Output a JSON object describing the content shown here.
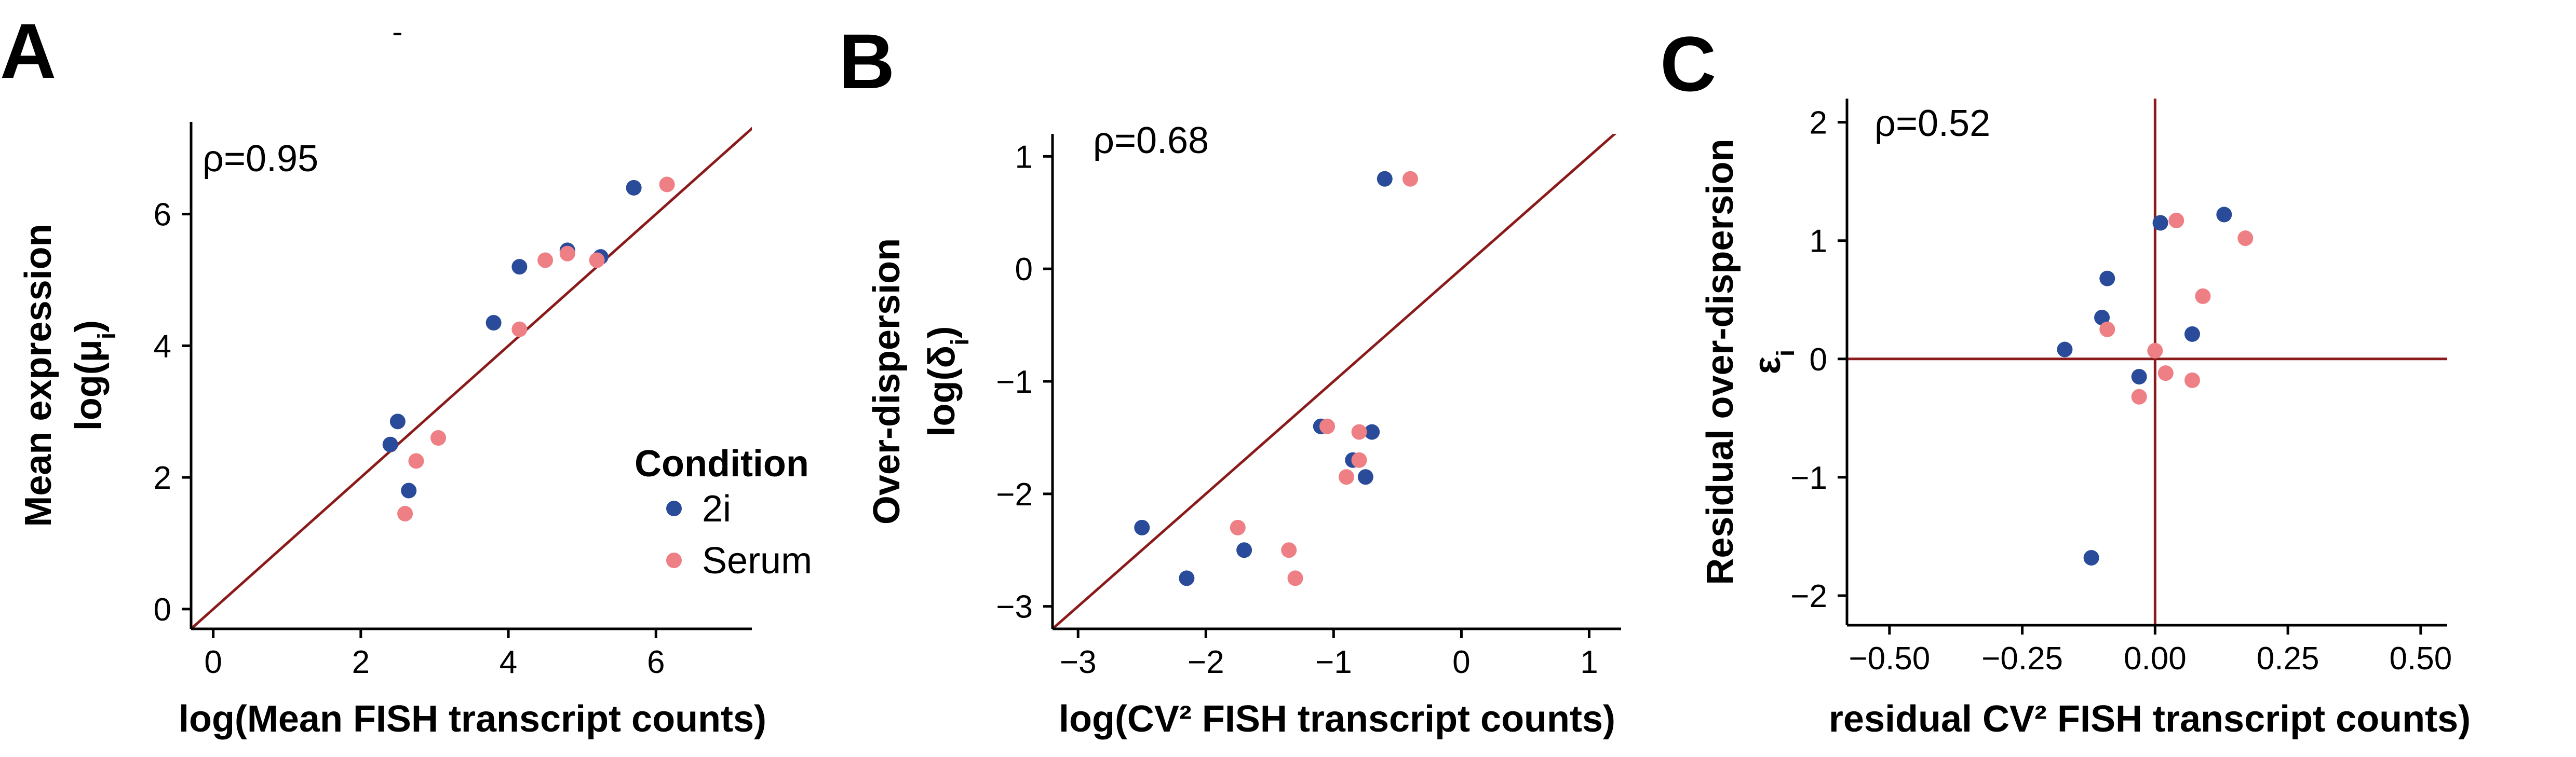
{
  "colors": {
    "2i": "#2a4b9a",
    "Serum": "#ee8085",
    "reference_line": "#8b1a1a",
    "axis": "#000000"
  },
  "legend": {
    "title": "Condition",
    "entries": [
      {
        "label": "2i",
        "color": "#2a4b9a"
      },
      {
        "label": "Serum",
        "color": "#ee8085"
      }
    ],
    "placement": "inside-bottom-right of panel A"
  },
  "stray_mark": "-",
  "chart_data": [
    {
      "panel": "A",
      "type": "scatter",
      "annotation": "ρ=0.95",
      "xlabel": "log(Mean FISH transcript counts)",
      "ylabel_lines": [
        "Mean expression",
        "log(μ",
        "i",
        ")"
      ],
      "xlim": [
        -0.3,
        7.3
      ],
      "ylim": [
        -0.3,
        7.4
      ],
      "xticks": [
        0,
        2,
        4,
        6
      ],
      "yticks": [
        0,
        2,
        4,
        6
      ],
      "reference_line": {
        "kind": "identity",
        "slope": 1,
        "intercept": 0
      },
      "series": [
        {
          "name": "2i",
          "points": [
            [
              2.4,
              2.5
            ],
            [
              2.5,
              2.85
            ],
            [
              2.65,
              1.8
            ],
            [
              3.8,
              4.35
            ],
            [
              4.15,
              5.2
            ],
            [
              4.8,
              5.45
            ],
            [
              5.25,
              5.35
            ],
            [
              5.7,
              6.4
            ]
          ]
        },
        {
          "name": "Serum",
          "points": [
            [
              2.6,
              1.45
            ],
            [
              2.75,
              2.25
            ],
            [
              3.05,
              2.6
            ],
            [
              4.15,
              4.25
            ],
            [
              4.5,
              5.3
            ],
            [
              4.8,
              5.4
            ],
            [
              5.2,
              5.3
            ],
            [
              6.15,
              6.45
            ]
          ]
        }
      ]
    },
    {
      "panel": "B",
      "type": "scatter",
      "annotation": "ρ=0.68",
      "xlabel": "log(CV² FISH transcript counts)",
      "ylabel_lines": [
        "Over-dispersion",
        "log(δ",
        "i",
        ")"
      ],
      "xlim": [
        -3.2,
        1.25
      ],
      "ylim": [
        -3.2,
        1.2
      ],
      "xticks": [
        -3,
        -2,
        -1,
        0,
        1
      ],
      "ytick_labels": [
        "1",
        "0",
        "−1",
        "−2",
        "−3"
      ],
      "yticks": [
        1,
        0,
        -1,
        -2,
        -3
      ],
      "xtick_labels": [
        "−3",
        "−2",
        "−1",
        "0",
        "1"
      ],
      "reference_line": {
        "kind": "identity",
        "slope": 1,
        "intercept": 0
      },
      "series": [
        {
          "name": "2i",
          "points": [
            [
              -2.5,
              -2.3
            ],
            [
              -2.15,
              -2.75
            ],
            [
              -1.7,
              -2.5
            ],
            [
              -1.1,
              -1.4
            ],
            [
              -0.7,
              -1.45
            ],
            [
              -0.85,
              -1.7
            ],
            [
              -0.75,
              -1.85
            ],
            [
              -0.6,
              0.8
            ]
          ]
        },
        {
          "name": "Serum",
          "points": [
            [
              -1.75,
              -2.3
            ],
            [
              -1.35,
              -2.5
            ],
            [
              -1.3,
              -2.75
            ],
            [
              -1.05,
              -1.4
            ],
            [
              -0.8,
              -1.45
            ],
            [
              -0.8,
              -1.7
            ],
            [
              -0.9,
              -1.85
            ],
            [
              -0.4,
              0.8
            ]
          ]
        }
      ]
    },
    {
      "panel": "C",
      "type": "scatter",
      "annotation": "ρ=0.52",
      "xlabel": "residual CV² FISH transcript counts)",
      "ylabel_lines": [
        "Residual over-dispersion",
        "ε",
        "i"
      ],
      "xlim": [
        -0.58,
        0.55
      ],
      "ylim": [
        -2.25,
        2.2
      ],
      "xticks": [
        -0.5,
        -0.25,
        0,
        0.25,
        0.5
      ],
      "xtick_labels": [
        "−0.50",
        "−0.25",
        "0.00",
        "0.25",
        "0.50"
      ],
      "yticks": [
        2,
        1,
        0,
        -1,
        -2
      ],
      "ytick_labels": [
        "2",
        "1",
        "0",
        "−1",
        "−2"
      ],
      "reference_line": {
        "kind": "crosshair",
        "x": 0,
        "y": 0
      },
      "series": [
        {
          "name": "2i",
          "points": [
            [
              -0.17,
              0.08
            ],
            [
              -0.1,
              0.35
            ],
            [
              -0.09,
              0.68
            ],
            [
              -0.03,
              -0.15
            ],
            [
              -0.12,
              -1.68
            ],
            [
              0.01,
              1.15
            ],
            [
              0.13,
              1.22
            ],
            [
              0.07,
              0.21
            ]
          ]
        },
        {
          "name": "Serum",
          "points": [
            [
              -0.09,
              0.25
            ],
            [
              -0.03,
              -0.32
            ],
            [
              0.0,
              0.07
            ],
            [
              0.04,
              1.17
            ],
            [
              0.17,
              1.02
            ],
            [
              0.09,
              0.53
            ],
            [
              0.02,
              -0.12
            ],
            [
              0.07,
              -0.18
            ]
          ]
        }
      ]
    }
  ]
}
